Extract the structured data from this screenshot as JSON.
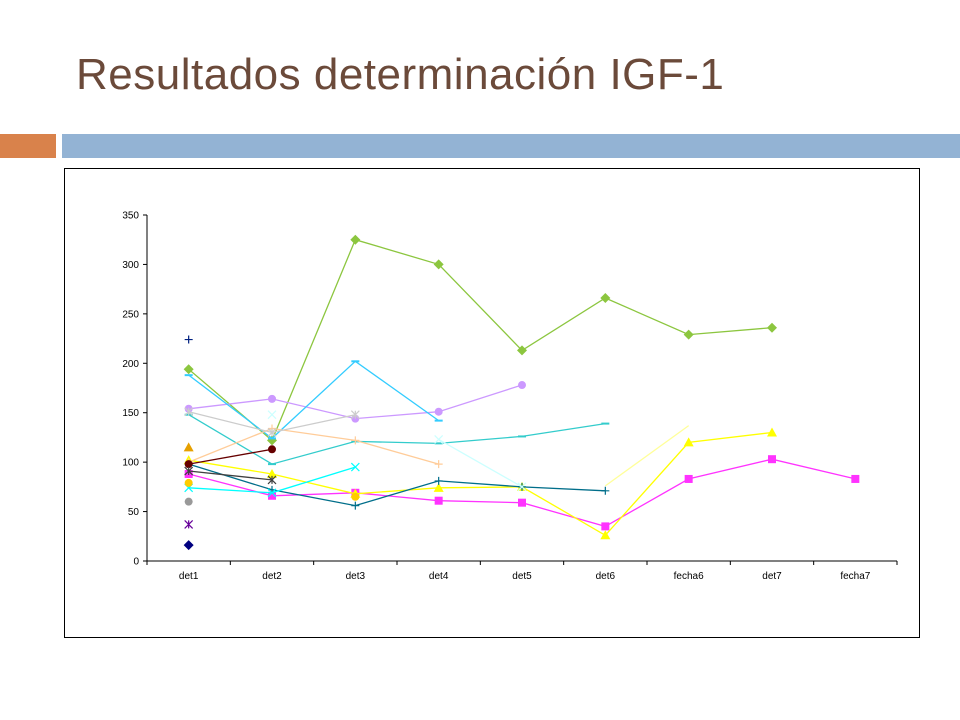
{
  "slide": {
    "title": "Resultados determinación IGF-1",
    "colors": {
      "title": "#6b4a3a",
      "accent_orange": "#d9824b",
      "accent_blue": "#93b3d4"
    }
  },
  "chart_data": {
    "type": "line",
    "categories": [
      "det1",
      "det2",
      "det3",
      "det4",
      "det5",
      "det6",
      "fecha6",
      "det7",
      "fecha7"
    ],
    "ylim": [
      0,
      350
    ],
    "yticks": [
      0,
      50,
      100,
      150,
      200,
      250,
      300,
      350
    ],
    "title": "",
    "xlabel": "",
    "ylabel": "",
    "grid": false,
    "series": [
      {
        "color": "#8cc63f",
        "marker": "diamond",
        "values": [
          194,
          122,
          325,
          300,
          213,
          266,
          229,
          236,
          null
        ]
      },
      {
        "color": "#ff33ff",
        "marker": "square",
        "values": [
          88,
          66,
          69,
          61,
          59,
          35,
          83,
          103,
          83
        ]
      },
      {
        "color": "#ffff00",
        "marker": "triangle",
        "values": [
          102,
          88,
          68,
          74,
          75,
          26,
          120,
          130,
          null
        ]
      },
      {
        "color": "#ffff99",
        "marker": "none",
        "values": [
          null,
          null,
          null,
          null,
          null,
          76,
          137,
          null,
          null
        ]
      },
      {
        "color": "#cc99ff",
        "marker": "circle",
        "values": [
          154,
          164,
          144,
          151,
          178,
          null,
          null,
          null,
          null
        ]
      },
      {
        "color": "#33cccc",
        "marker": "dash",
        "values": [
          148,
          98,
          121,
          119,
          126,
          139,
          null,
          null,
          null
        ]
      },
      {
        "color": "#33ccff",
        "marker": "dash",
        "values": [
          188,
          124,
          202,
          142,
          null,
          null,
          null,
          null,
          null
        ]
      },
      {
        "color": "#006e8a",
        "marker": "plus",
        "values": [
          98,
          72,
          56,
          81,
          75,
          71,
          null,
          null,
          null
        ]
      },
      {
        "color": "#ffcc99",
        "marker": "plus",
        "values": [
          100,
          134,
          122,
          98,
          null,
          null,
          null,
          null,
          null
        ]
      },
      {
        "color": "#cccccc",
        "marker": "star",
        "values": [
          151,
          130,
          148,
          null,
          null,
          null,
          null,
          null,
          null
        ]
      },
      {
        "color": "#00ffff",
        "marker": "x",
        "values": [
          74,
          69,
          95,
          null,
          null,
          null,
          null,
          null,
          null
        ]
      },
      {
        "color": "#ccffff",
        "marker": "x",
        "values": [
          null,
          148,
          null,
          123,
          75,
          null,
          null,
          null,
          null
        ]
      },
      {
        "color": "#660000",
        "marker": "circle",
        "values": [
          98,
          113,
          null,
          null,
          null,
          null,
          null,
          null,
          null
        ]
      },
      {
        "color": "#404040",
        "marker": "star",
        "values": [
          91,
          82,
          null,
          null,
          null,
          null,
          null,
          null,
          null
        ]
      },
      {
        "color": "#ffcc00",
        "marker": "circle",
        "values": [
          79,
          null,
          65,
          null,
          null,
          null,
          null,
          null,
          null
        ]
      },
      {
        "color": "#002080",
        "marker": "plus",
        "values": [
          224,
          null,
          null,
          null,
          null,
          null,
          null,
          null,
          null
        ]
      },
      {
        "color": "#e6a000",
        "marker": "triangle",
        "values": [
          115,
          null,
          null,
          null,
          null,
          null,
          null,
          null,
          null
        ]
      },
      {
        "color": "#999999",
        "marker": "circle",
        "values": [
          60,
          null,
          null,
          null,
          null,
          null,
          null,
          null,
          null
        ]
      },
      {
        "color": "#660099",
        "marker": "star",
        "values": [
          37,
          null,
          null,
          null,
          null,
          null,
          null,
          null,
          null
        ]
      },
      {
        "color": "#000080",
        "marker": "diamond",
        "values": [
          16,
          null,
          null,
          null,
          null,
          null,
          null,
          null,
          null
        ]
      }
    ]
  }
}
